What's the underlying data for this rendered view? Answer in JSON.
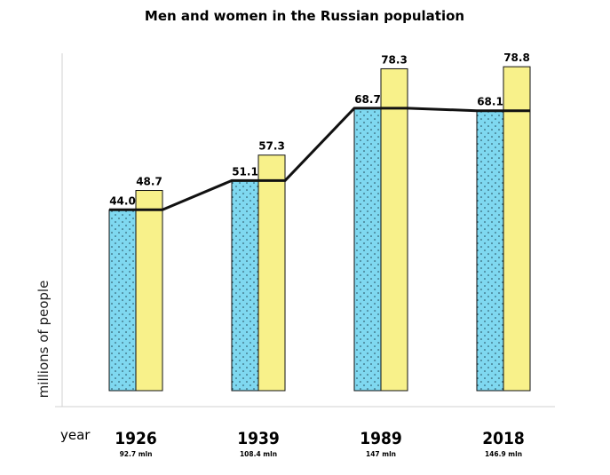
{
  "chart_data": {
    "type": "bar",
    "title": "Men and women in the Russian population",
    "ylabel": "millions of people",
    "xlabel": "year",
    "categories": [
      "1926",
      "1939",
      "1989",
      "2018"
    ],
    "totals": [
      "92.7 mln",
      "108.4 mln",
      "147 mln",
      "146.9 mln"
    ],
    "series": [
      {
        "values": [
          44.0,
          51.1,
          68.7,
          68.1
        ],
        "labels": [
          "44.0",
          "51.1",
          "68.7",
          "68.1"
        ],
        "color": "#7fd8f0",
        "pattern": "dots"
      },
      {
        "values": [
          48.7,
          57.3,
          78.3,
          78.8
        ],
        "labels": [
          "48.7",
          "57.3",
          "78.3",
          "78.8"
        ],
        "color": "#f8f18a"
      }
    ],
    "line": {
      "values": [
        44.0,
        51.1,
        68.7,
        68.1
      ],
      "color": "#111111"
    },
    "ylim": [
      0,
      80
    ],
    "grid": false
  }
}
